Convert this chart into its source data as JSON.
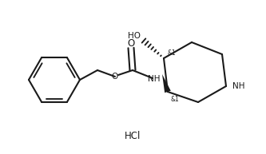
{
  "background_color": "#ffffff",
  "line_color": "#1a1a1a",
  "line_width": 1.5,
  "text_color": "#1a1a1a",
  "font_size": 7.5,
  "hcl_label": "HCl",
  "ho_label": "HO",
  "nh_carbamate": "NH",
  "o_ether": "O",
  "o_carbonyl": "O",
  "nh_pip": "NH",
  "stereo1": "&1",
  "stereo2": "&1"
}
